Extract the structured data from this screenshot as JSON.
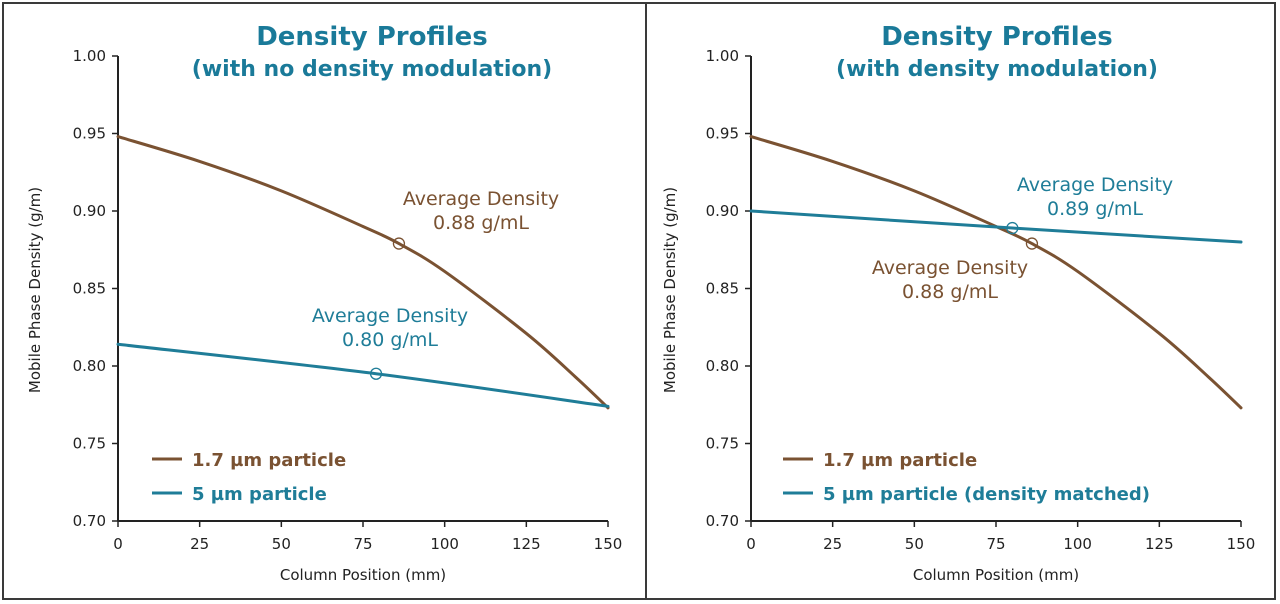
{
  "colors": {
    "brown": "#7a5232",
    "teal": "#1f7d98",
    "axis": "#222222"
  },
  "chart_data": [
    {
      "type": "line",
      "title": "Density Profiles",
      "subtitle": "(with no density modulation)",
      "xlabel": "Column Position (mm)",
      "ylabel": "Mobile Phase Density (g/m)",
      "xlim": [
        0,
        150
      ],
      "ylim": [
        0.7,
        1.0
      ],
      "xticks": [
        "0",
        "25",
        "50",
        "75",
        "100",
        "125",
        "150"
      ],
      "yticks": [
        "0.70",
        "0.75",
        "0.80",
        "0.85",
        "0.90",
        "0.95",
        "1.00"
      ],
      "series": [
        {
          "name": "1.7 µm particle",
          "color": "#7a5232",
          "x": [
            0,
            25,
            50,
            75,
            86,
            100,
            125,
            140,
            150
          ],
          "y": [
            0.948,
            0.932,
            0.913,
            0.89,
            0.879,
            0.861,
            0.821,
            0.793,
            0.773
          ],
          "marker": {
            "x": 86,
            "y": 0.879
          },
          "annotation": [
            "Average Density",
            "0.88 g/mL"
          ]
        },
        {
          "name": "5 µm particle",
          "color": "#1f7d98",
          "x": [
            0,
            79,
            150
          ],
          "y": [
            0.814,
            0.795,
            0.774
          ],
          "marker": {
            "x": 79,
            "y": 0.795
          },
          "annotation": [
            "Average Density",
            "0.80 g/mL"
          ]
        }
      ],
      "legend": [
        "1.7 µm particle",
        "5 µm particle"
      ]
    },
    {
      "type": "line",
      "title": "Density Profiles",
      "subtitle": "(with density modulation)",
      "xlabel": "Column Position (mm)",
      "ylabel": "Mobile Phase Density (g/m)",
      "xlim": [
        0,
        150
      ],
      "ylim": [
        0.7,
        1.0
      ],
      "xticks": [
        "0",
        "25",
        "50",
        "75",
        "100",
        "125",
        "150"
      ],
      "yticks": [
        "0.70",
        "0.75",
        "0.80",
        "0.85",
        "0.90",
        "0.95",
        "1.00"
      ],
      "series": [
        {
          "name": "1.7 µm particle",
          "color": "#7a5232",
          "x": [
            0,
            25,
            50,
            75,
            86,
            100,
            125,
            140,
            150
          ],
          "y": [
            0.948,
            0.932,
            0.913,
            0.89,
            0.879,
            0.861,
            0.821,
            0.793,
            0.773
          ],
          "marker": {
            "x": 86,
            "y": 0.879
          },
          "annotation": [
            "Average Density",
            "0.88 g/mL"
          ]
        },
        {
          "name": "5 µm particle (density matched)",
          "color": "#1f7d98",
          "x": [
            0,
            80,
            150
          ],
          "y": [
            0.9,
            0.889,
            0.88
          ],
          "marker": {
            "x": 80,
            "y": 0.889
          },
          "annotation": [
            "Average Density",
            "0.89 g/mL"
          ]
        }
      ],
      "legend": [
        "1.7 µm particle",
        "5 µm particle (density matched)"
      ]
    }
  ]
}
